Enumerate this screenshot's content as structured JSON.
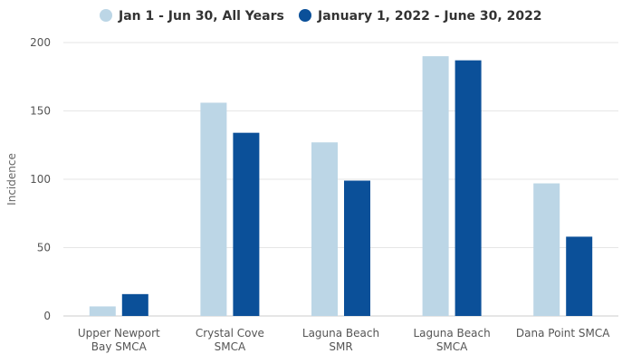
{
  "chart_data": {
    "type": "bar",
    "title": "",
    "xlabel": "",
    "ylabel": "Incidence",
    "ylim": [
      0,
      200
    ],
    "yticks": [
      0,
      50,
      100,
      150,
      200
    ],
    "categories": [
      [
        "Upper Newport",
        "Bay SMCA"
      ],
      [
        "Crystal Cove",
        "SMCA"
      ],
      [
        "Laguna Beach",
        "SMR"
      ],
      [
        "Laguna Beach",
        "SMCA"
      ],
      [
        "Dana Point SMCA"
      ]
    ],
    "series": [
      {
        "name": "Jan 1 - Jun 30, All Years",
        "color": "#bcd6e6",
        "values": [
          7,
          156,
          127,
          190,
          97
        ]
      },
      {
        "name": "January 1, 2022 - June 30, 2022",
        "color": "#0b5099",
        "values": [
          16,
          134,
          99,
          187,
          58
        ]
      }
    ],
    "legend_position": "top-center",
    "grid": true
  }
}
